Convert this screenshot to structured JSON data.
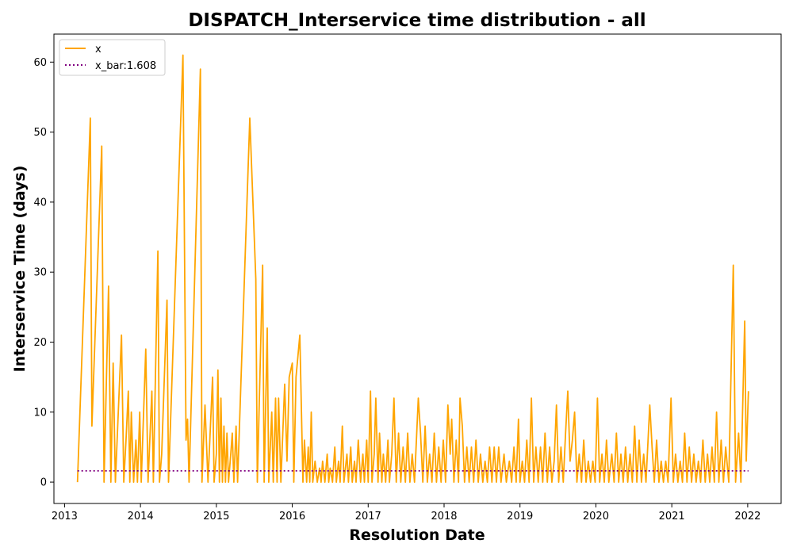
{
  "chart_data": {
    "type": "line",
    "title": "DISPATCH_Interservice time distribution - all",
    "xlabel": "Resolution Date",
    "ylabel": "Interservice Time (days)",
    "xlim": [
      2012.86,
      2022.44
    ],
    "ylim": [
      -3.05,
      64.0
    ],
    "x_ticks": [
      2013,
      2014,
      2015,
      2016,
      2017,
      2018,
      2019,
      2020,
      2021,
      2022
    ],
    "x_tick_labels": [
      "2013",
      "2014",
      "2015",
      "2016",
      "2017",
      "2018",
      "2019",
      "2020",
      "2021",
      "2022"
    ],
    "y_ticks": [
      0,
      10,
      20,
      30,
      40,
      50,
      60
    ],
    "y_tick_labels": [
      "0",
      "10",
      "20",
      "30",
      "40",
      "50",
      "60"
    ],
    "grid": false,
    "legend": {
      "position": "top-left",
      "entries": [
        {
          "label": "x",
          "color": "#ffa500",
          "style": "solid"
        },
        {
          "label": "x_bar:1.608",
          "color": "#800080",
          "style": "dotted"
        }
      ]
    },
    "series": [
      {
        "name": "x",
        "color": "#ffa500",
        "points": [
          [
            2013.17,
            0
          ],
          [
            2013.34,
            52
          ],
          [
            2013.36,
            8
          ],
          [
            2013.49,
            48
          ],
          [
            2013.52,
            0
          ],
          [
            2013.58,
            28
          ],
          [
            2013.61,
            0
          ],
          [
            2013.64,
            17
          ],
          [
            2013.67,
            0
          ],
          [
            2013.75,
            21
          ],
          [
            2013.78,
            0
          ],
          [
            2013.81,
            6
          ],
          [
            2013.84,
            13
          ],
          [
            2013.86,
            0
          ],
          [
            2013.88,
            10
          ],
          [
            2013.91,
            0
          ],
          [
            2013.94,
            6
          ],
          [
            2013.96,
            0
          ],
          [
            2013.99,
            10
          ],
          [
            2014.01,
            0
          ],
          [
            2014.07,
            19
          ],
          [
            2014.1,
            0
          ],
          [
            2014.15,
            13
          ],
          [
            2014.17,
            0
          ],
          [
            2014.23,
            33
          ],
          [
            2014.25,
            0
          ],
          [
            2014.28,
            4
          ],
          [
            2014.35,
            26
          ],
          [
            2014.37,
            0
          ],
          [
            2014.56,
            61
          ],
          [
            2014.6,
            6
          ],
          [
            2014.62,
            9
          ],
          [
            2014.64,
            0
          ],
          [
            2014.79,
            59
          ],
          [
            2014.81,
            0
          ],
          [
            2014.85,
            11
          ],
          [
            2014.89,
            0
          ],
          [
            2014.91,
            5
          ],
          [
            2014.95,
            15
          ],
          [
            2014.97,
            0
          ],
          [
            2015.0,
            4
          ],
          [
            2015.02,
            16
          ],
          [
            2015.04,
            0
          ],
          [
            2015.06,
            12
          ],
          [
            2015.08,
            0
          ],
          [
            2015.1,
            8
          ],
          [
            2015.12,
            0
          ],
          [
            2015.14,
            7
          ],
          [
            2015.16,
            0
          ],
          [
            2015.19,
            4
          ],
          [
            2015.21,
            7
          ],
          [
            2015.23,
            0
          ],
          [
            2015.26,
            8
          ],
          [
            2015.28,
            0
          ],
          [
            2015.44,
            52
          ],
          [
            2015.52,
            29
          ],
          [
            2015.54,
            0
          ],
          [
            2015.61,
            31
          ],
          [
            2015.63,
            0
          ],
          [
            2015.67,
            22
          ],
          [
            2015.69,
            0
          ],
          [
            2015.73,
            10
          ],
          [
            2015.75,
            0
          ],
          [
            2015.78,
            12
          ],
          [
            2015.8,
            0
          ],
          [
            2015.82,
            12
          ],
          [
            2015.85,
            0
          ],
          [
            2015.9,
            14
          ],
          [
            2015.93,
            3
          ],
          [
            2015.96,
            15
          ],
          [
            2016.0,
            17
          ],
          [
            2016.02,
            0
          ],
          [
            2016.05,
            15
          ],
          [
            2016.1,
            21
          ],
          [
            2016.14,
            0
          ],
          [
            2016.16,
            6
          ],
          [
            2016.19,
            0
          ],
          [
            2016.21,
            5
          ],
          [
            2016.23,
            0
          ],
          [
            2016.25,
            10
          ],
          [
            2016.27,
            0
          ],
          [
            2016.3,
            3
          ],
          [
            2016.33,
            0
          ],
          [
            2016.36,
            2
          ],
          [
            2016.38,
            0
          ],
          [
            2016.4,
            3
          ],
          [
            2016.43,
            0
          ],
          [
            2016.46,
            4
          ],
          [
            2016.48,
            0
          ],
          [
            2016.5,
            2
          ],
          [
            2016.53,
            0
          ],
          [
            2016.56,
            5
          ],
          [
            2016.58,
            0
          ],
          [
            2016.61,
            3
          ],
          [
            2016.63,
            0
          ],
          [
            2016.66,
            8
          ],
          [
            2016.68,
            0
          ],
          [
            2016.72,
            4
          ],
          [
            2016.74,
            0
          ],
          [
            2016.77,
            5
          ],
          [
            2016.79,
            0
          ],
          [
            2016.82,
            3
          ],
          [
            2016.84,
            0
          ],
          [
            2016.87,
            6
          ],
          [
            2016.9,
            0
          ],
          [
            2016.93,
            4
          ],
          [
            2016.95,
            0
          ],
          [
            2016.98,
            6
          ],
          [
            2017.0,
            0
          ],
          [
            2017.03,
            13
          ],
          [
            2017.05,
            0
          ],
          [
            2017.08,
            4
          ],
          [
            2017.1,
            12
          ],
          [
            2017.13,
            0
          ],
          [
            2017.15,
            7
          ],
          [
            2017.18,
            0
          ],
          [
            2017.2,
            4
          ],
          [
            2017.23,
            0
          ],
          [
            2017.26,
            6
          ],
          [
            2017.28,
            0
          ],
          [
            2017.31,
            4
          ],
          [
            2017.34,
            12
          ],
          [
            2017.37,
            0
          ],
          [
            2017.4,
            7
          ],
          [
            2017.43,
            0
          ],
          [
            2017.46,
            5
          ],
          [
            2017.49,
            0
          ],
          [
            2017.52,
            7
          ],
          [
            2017.55,
            0
          ],
          [
            2017.58,
            4
          ],
          [
            2017.61,
            0
          ],
          [
            2017.66,
            12
          ],
          [
            2017.69,
            7
          ],
          [
            2017.72,
            0
          ],
          [
            2017.75,
            8
          ],
          [
            2017.78,
            0
          ],
          [
            2017.81,
            4
          ],
          [
            2017.84,
            0
          ],
          [
            2017.87,
            7
          ],
          [
            2017.9,
            0
          ],
          [
            2017.93,
            5
          ],
          [
            2017.96,
            0
          ],
          [
            2017.99,
            6
          ],
          [
            2018.02,
            0
          ],
          [
            2018.05,
            11
          ],
          [
            2018.08,
            4
          ],
          [
            2018.1,
            9
          ],
          [
            2018.13,
            0
          ],
          [
            2018.16,
            6
          ],
          [
            2018.19,
            0
          ],
          [
            2018.21,
            12
          ],
          [
            2018.24,
            8
          ],
          [
            2018.27,
            0
          ],
          [
            2018.3,
            5
          ],
          [
            2018.33,
            0
          ],
          [
            2018.36,
            5
          ],
          [
            2018.39,
            0
          ],
          [
            2018.42,
            6
          ],
          [
            2018.45,
            0
          ],
          [
            2018.48,
            4
          ],
          [
            2018.51,
            0
          ],
          [
            2018.54,
            3
          ],
          [
            2018.57,
            0
          ],
          [
            2018.6,
            5
          ],
          [
            2018.63,
            0
          ],
          [
            2018.66,
            5
          ],
          [
            2018.69,
            0
          ],
          [
            2018.72,
            5
          ],
          [
            2018.75,
            0
          ],
          [
            2018.79,
            4
          ],
          [
            2018.82,
            0
          ],
          [
            2018.86,
            3
          ],
          [
            2018.89,
            0
          ],
          [
            2018.92,
            5
          ],
          [
            2018.95,
            0
          ],
          [
            2018.98,
            9
          ],
          [
            2019.0,
            0
          ],
          [
            2019.03,
            3
          ],
          [
            2019.06,
            0
          ],
          [
            2019.09,
            6
          ],
          [
            2019.12,
            0
          ],
          [
            2019.15,
            12
          ],
          [
            2019.18,
            0
          ],
          [
            2019.21,
            5
          ],
          [
            2019.24,
            0
          ],
          [
            2019.27,
            5
          ],
          [
            2019.3,
            0
          ],
          [
            2019.33,
            7
          ],
          [
            2019.36,
            0
          ],
          [
            2019.39,
            5
          ],
          [
            2019.42,
            0
          ],
          [
            2019.45,
            3
          ],
          [
            2019.48,
            11
          ],
          [
            2019.51,
            0
          ],
          [
            2019.54,
            5
          ],
          [
            2019.57,
            0
          ],
          [
            2019.6,
            7
          ],
          [
            2019.63,
            13
          ],
          [
            2019.66,
            3
          ],
          [
            2019.69,
            6
          ],
          [
            2019.72,
            10
          ],
          [
            2019.75,
            0
          ],
          [
            2019.78,
            4
          ],
          [
            2019.81,
            0
          ],
          [
            2019.84,
            6
          ],
          [
            2019.87,
            0
          ],
          [
            2019.9,
            3
          ],
          [
            2019.93,
            0
          ],
          [
            2019.96,
            3
          ],
          [
            2019.99,
            0
          ],
          [
            2020.02,
            12
          ],
          [
            2020.05,
            0
          ],
          [
            2020.08,
            4
          ],
          [
            2020.11,
            0
          ],
          [
            2020.14,
            6
          ],
          [
            2020.17,
            0
          ],
          [
            2020.21,
            4
          ],
          [
            2020.24,
            0
          ],
          [
            2020.27,
            7
          ],
          [
            2020.3,
            0
          ],
          [
            2020.33,
            4
          ],
          [
            2020.36,
            0
          ],
          [
            2020.39,
            5
          ],
          [
            2020.42,
            0
          ],
          [
            2020.45,
            4
          ],
          [
            2020.48,
            0
          ],
          [
            2020.51,
            8
          ],
          [
            2020.54,
            0
          ],
          [
            2020.57,
            6
          ],
          [
            2020.6,
            0
          ],
          [
            2020.63,
            4
          ],
          [
            2020.66,
            0
          ],
          [
            2020.71,
            11
          ],
          [
            2020.74,
            5
          ],
          [
            2020.77,
            0
          ],
          [
            2020.8,
            6
          ],
          [
            2020.83,
            0
          ],
          [
            2020.86,
            3
          ],
          [
            2020.89,
            0
          ],
          [
            2020.92,
            3
          ],
          [
            2020.95,
            0
          ],
          [
            2020.99,
            12
          ],
          [
            2021.02,
            0
          ],
          [
            2021.05,
            4
          ],
          [
            2021.08,
            0
          ],
          [
            2021.11,
            3
          ],
          [
            2021.14,
            0
          ],
          [
            2021.17,
            7
          ],
          [
            2021.2,
            0
          ],
          [
            2021.23,
            5
          ],
          [
            2021.26,
            0
          ],
          [
            2021.29,
            4
          ],
          [
            2021.32,
            0
          ],
          [
            2021.35,
            3
          ],
          [
            2021.38,
            0
          ],
          [
            2021.41,
            6
          ],
          [
            2021.44,
            0
          ],
          [
            2021.47,
            4
          ],
          [
            2021.5,
            0
          ],
          [
            2021.53,
            5
          ],
          [
            2021.56,
            0
          ],
          [
            2021.59,
            10
          ],
          [
            2021.62,
            0
          ],
          [
            2021.65,
            6
          ],
          [
            2021.68,
            0
          ],
          [
            2021.71,
            5
          ],
          [
            2021.75,
            0
          ],
          [
            2021.81,
            31
          ],
          [
            2021.84,
            0
          ],
          [
            2021.88,
            7
          ],
          [
            2021.91,
            0
          ],
          [
            2021.96,
            23
          ],
          [
            2021.98,
            3
          ],
          [
            2022.01,
            13
          ]
        ]
      },
      {
        "name": "x_bar:1.608",
        "color": "#800080",
        "points": [
          [
            2013.17,
            1.608
          ],
          [
            2022.01,
            1.608
          ]
        ]
      }
    ]
  }
}
